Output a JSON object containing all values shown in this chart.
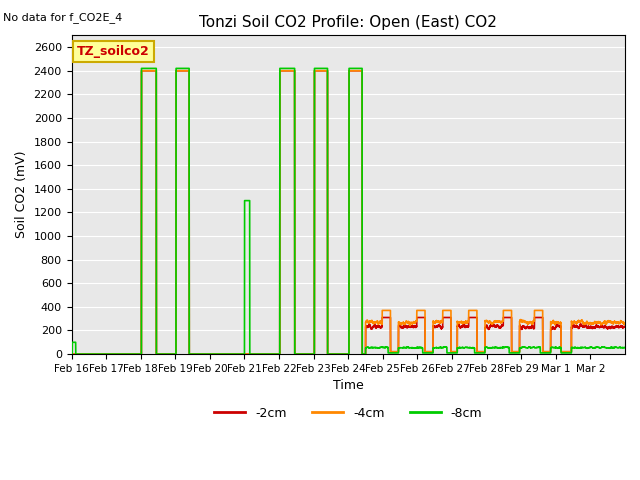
{
  "title": "Tonzi Soil CO2 Profile: Open (East) CO2",
  "no_data_text": "No data for f_CO2E_4",
  "ylabel": "Soil CO2 (mV)",
  "xlabel": "Time",
  "ylim": [
    0,
    2700
  ],
  "yticks": [
    0,
    200,
    400,
    600,
    800,
    1000,
    1200,
    1400,
    1600,
    1800,
    2000,
    2200,
    2400,
    2600
  ],
  "bg_color": "#e8e8e8",
  "legend_label": "TZ_soilco2",
  "series_labels": [
    "-2cm",
    "-4cm",
    "-8cm"
  ],
  "series_colors": [
    "#cc0000",
    "#ff8800",
    "#00cc00"
  ],
  "line_width": 1.2,
  "legend_box_color": "#ffff99",
  "legend_box_edge": "#ccaa00",
  "tick_labels": [
    "Feb 16",
    "Feb 17",
    "Feb 18",
    "Feb 19",
    "Feb 20",
    "Feb 21",
    "Feb 22",
    "Feb 23",
    "Feb 24",
    "Feb 25",
    "Feb 26",
    "Feb 27",
    "Feb 28",
    "Feb 29",
    "Mar 1",
    "Mar 2"
  ],
  "tick_fontsize": 7.5,
  "title_fontsize": 11,
  "ylabel_fontsize": 9,
  "xlabel_fontsize": 9
}
